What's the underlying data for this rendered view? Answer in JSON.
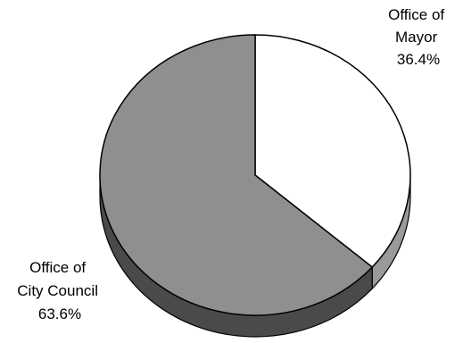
{
  "chart_data": {
    "type": "pie",
    "title": "",
    "three_d": true,
    "slices": [
      {
        "label_lines": [
          "Office of",
          "Mayor"
        ],
        "percent_label": "36.4%",
        "value": 36.4,
        "color": "#ffffff",
        "side_color": "#9a9a9a"
      },
      {
        "label_lines": [
          "Office of",
          "City Council"
        ],
        "percent_label": "63.6%",
        "value": 63.6,
        "color": "#8f8f8f",
        "side_color": "#4a4a4a"
      }
    ],
    "legend": "none",
    "outline_color": "#000000"
  }
}
